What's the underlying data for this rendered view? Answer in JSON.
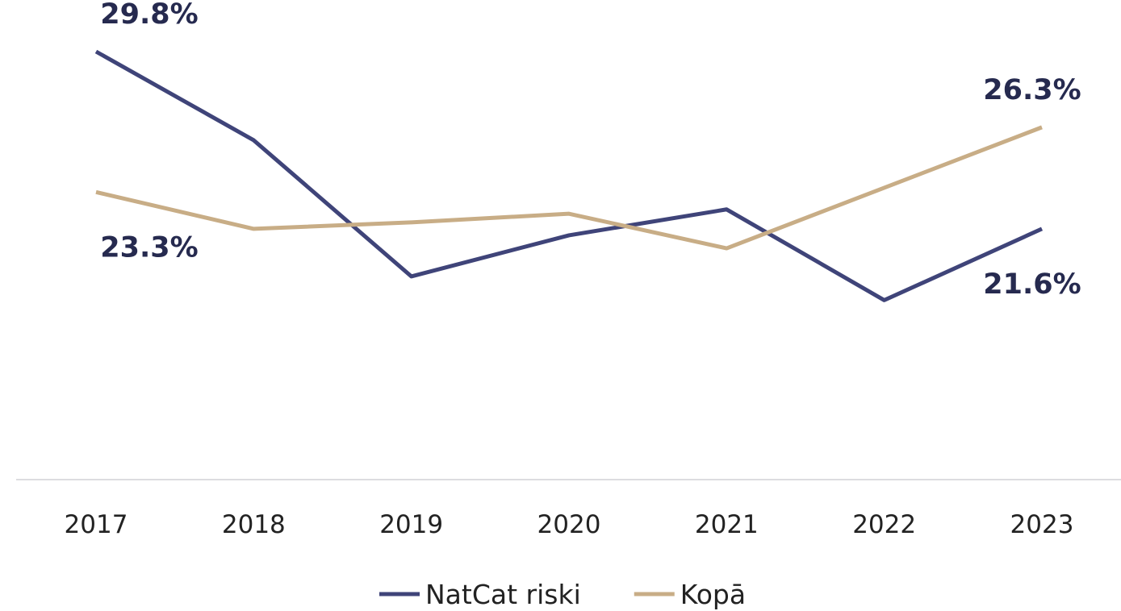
{
  "chart_data": {
    "type": "line",
    "categories": [
      "2017",
      "2018",
      "2019",
      "2020",
      "2021",
      "2022",
      "2023"
    ],
    "series": [
      {
        "name": "NatCat riski",
        "color": "#3f4479",
        "values": [
          29.8,
          25.7,
          19.4,
          21.3,
          22.5,
          18.3,
          21.6
        ],
        "value_labels": [
          "29.8%",
          null,
          null,
          null,
          null,
          null,
          "21.6%"
        ]
      },
      {
        "name": "Kopā",
        "color": "#c8ad86",
        "values": [
          23.3,
          21.6,
          21.9,
          22.3,
          20.7,
          23.5,
          26.3
        ],
        "value_labels": [
          "23.3%",
          null,
          null,
          null,
          null,
          null,
          "26.3%"
        ]
      }
    ],
    "ylim": [
      10,
      32
    ],
    "legend": "bottom"
  }
}
